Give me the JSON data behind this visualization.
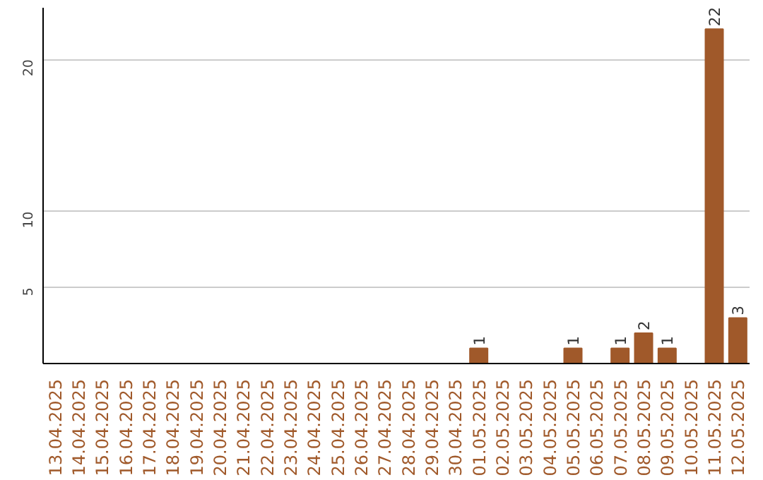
{
  "chart_data": {
    "type": "bar",
    "categories": [
      "13.04.2025",
      "14.04.2025",
      "15.04.2025",
      "16.04.2025",
      "17.04.2025",
      "18.04.2025",
      "19.04.2025",
      "20.04.2025",
      "21.04.2025",
      "22.04.2025",
      "23.04.2025",
      "24.04.2025",
      "25.04.2025",
      "26.04.2025",
      "27.04.2025",
      "28.04.2025",
      "29.04.2025",
      "30.04.2025",
      "01.05.2025",
      "02.05.2025",
      "03.05.2025",
      "04.05.2025",
      "05.05.2025",
      "06.05.2025",
      "07.05.2025",
      "08.05.2025",
      "09.05.2025",
      "10.05.2025",
      "11.05.2025",
      "12.05.2025"
    ],
    "values": [
      0,
      0,
      0,
      0,
      0,
      0,
      0,
      0,
      0,
      0,
      0,
      0,
      0,
      0,
      0,
      0,
      0,
      0,
      1,
      0,
      0,
      0,
      1,
      0,
      1,
      2,
      1,
      0,
      22,
      3
    ],
    "value_labels": [
      null,
      null,
      null,
      null,
      null,
      null,
      null,
      null,
      null,
      null,
      null,
      null,
      null,
      null,
      null,
      null,
      null,
      null,
      "1",
      null,
      null,
      null,
      "1",
      null,
      "1",
      "2",
      "1",
      null,
      "22",
      "3"
    ],
    "color": "#a0592a",
    "ylim": [
      0,
      23.4
    ],
    "yticks": [
      5,
      10,
      20
    ],
    "grid": "y"
  }
}
